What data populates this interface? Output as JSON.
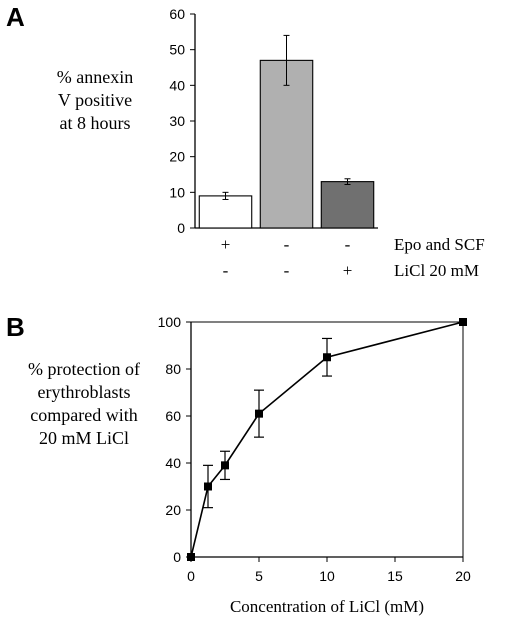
{
  "chart_data": [
    {
      "panel": "A",
      "type": "bar",
      "ylabel_lines": [
        "% annexin",
        "V positive",
        "at 8 hours"
      ],
      "ylim": [
        0,
        60
      ],
      "yticks": [
        0,
        10,
        20,
        30,
        40,
        50,
        60
      ],
      "categories": [
        "Epo and SCF + / LiCl -",
        "Epo and SCF - / LiCl -",
        "Epo and SCF - / LiCl +"
      ],
      "values": [
        9,
        47,
        13
      ],
      "errors": [
        1,
        7,
        0.8
      ],
      "colors": [
        "#ffffff",
        "#b0b0b0",
        "#707070"
      ],
      "condition_rows": [
        {
          "label": "Epo and SCF",
          "signs": [
            "+",
            "-",
            "-"
          ]
        },
        {
          "label": "LiCl 20 mM",
          "signs": [
            "-",
            "-",
            "+"
          ]
        }
      ],
      "grid": false
    },
    {
      "panel": "B",
      "type": "line",
      "ylabel_lines": [
        "% protection of",
        "erythroblasts",
        "compared with",
        "20 mM LiCl"
      ],
      "xlabel": "Concentration of LiCl (mM)",
      "xlim": [
        0,
        20
      ],
      "ylim": [
        0,
        100
      ],
      "xticks": [
        0,
        5,
        10,
        15,
        20
      ],
      "yticks": [
        0,
        20,
        40,
        60,
        80,
        100
      ],
      "x": [
        0,
        1.25,
        2.5,
        5,
        10,
        20
      ],
      "y": [
        0,
        30,
        39,
        61,
        85,
        100
      ],
      "errors": [
        0,
        9,
        6,
        10,
        8,
        0
      ],
      "grid": false
    }
  ]
}
